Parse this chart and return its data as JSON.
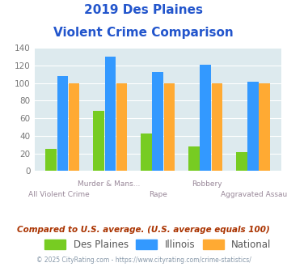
{
  "title_line1": "2019 Des Plaines",
  "title_line2": "Violent Crime Comparison",
  "cat_labels_row1": [
    "",
    "Murder & Mans...",
    "",
    "Robbery",
    ""
  ],
  "cat_labels_row2": [
    "All Violent Crime",
    "",
    "Rape",
    "",
    "Aggravated Assault"
  ],
  "des_plaines": [
    25,
    68,
    43,
    28,
    21
  ],
  "illinois": [
    108,
    130,
    113,
    121,
    102
  ],
  "national": [
    100,
    100,
    100,
    100,
    100
  ],
  "color_des_plaines": "#77cc22",
  "color_illinois": "#3399ff",
  "color_national": "#ffaa33",
  "color_title": "#2255cc",
  "color_bg_plot": "#ddeaee",
  "color_xlabel": "#998899",
  "color_footnote": "#aa3300",
  "color_copyright": "#8899aa",
  "color_ytick": "#777777",
  "ylim": [
    0,
    140
  ],
  "yticks": [
    0,
    20,
    40,
    60,
    80,
    100,
    120,
    140
  ],
  "footnote": "Compared to U.S. average. (U.S. average equals 100)",
  "copyright": "© 2025 CityRating.com - https://www.cityrating.com/crime-statistics/",
  "legend_labels": [
    "Des Plaines",
    "Illinois",
    "National"
  ]
}
